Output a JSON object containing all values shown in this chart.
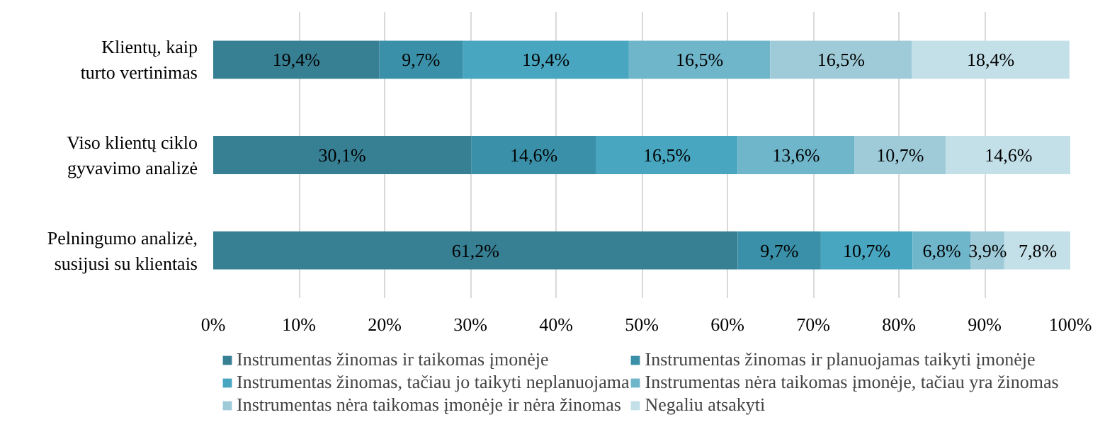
{
  "chart_data": {
    "type": "bar",
    "orientation": "horizontal",
    "stacked": true,
    "categories": [
      "Klientų, kaip turto vertinimas",
      "Viso klientų ciklo gyvavimo analizė",
      "Pelningumo analizė, susijusi su klientais"
    ],
    "series": [
      {
        "name": "Instrumentas žinomas ir taikomas įmonėje",
        "color": "#377f93",
        "values": [
          19.4,
          30.1,
          61.2
        ],
        "value_labels": [
          "19,4%",
          "30,1%",
          "61,2%"
        ]
      },
      {
        "name": "Instrumentas žinomas ir planuojamas taikyti įmonėje",
        "color": "#3a90a8",
        "values": [
          9.7,
          14.6,
          9.7
        ],
        "value_labels": [
          "9,7%",
          "14,6%",
          "9,7%"
        ]
      },
      {
        "name": "Instrumentas žinomas, tačiau jo taikyti neplanuojama",
        "color": "#48a6c0",
        "values": [
          19.4,
          16.5,
          10.7
        ],
        "value_labels": [
          "19,4%",
          "16,5%",
          "10,7%"
        ]
      },
      {
        "name": "Instrumentas nėra taikomas įmonėje, tačiau yra žinomas",
        "color": "#6fb6cb",
        "values": [
          16.5,
          13.6,
          6.8
        ],
        "value_labels": [
          "16,5%",
          "13,6%",
          "6,8%"
        ]
      },
      {
        "name": "Instrumentas nėra taikomas įmonėje ir nėra žinomas",
        "color": "#9fcbd9",
        "values": [
          16.5,
          10.7,
          3.9
        ],
        "value_labels": [
          "16,5%",
          "10,7%",
          "3,9%"
        ]
      },
      {
        "name": "Negaliu atsakyti",
        "color": "#c3dfe8",
        "values": [
          18.4,
          14.6,
          7.8
        ],
        "value_labels": [
          "18,4%",
          "14,6%",
          "7,8%"
        ]
      }
    ],
    "xlim": [
      0,
      100
    ],
    "xticks": [
      {
        "value": 0,
        "label": "0%"
      },
      {
        "value": 10,
        "label": "10%"
      },
      {
        "value": 20,
        "label": "20%"
      },
      {
        "value": 30,
        "label": "30%"
      },
      {
        "value": 40,
        "label": "40%"
      },
      {
        "value": 50,
        "label": "50%"
      },
      {
        "value": 60,
        "label": "60%"
      },
      {
        "value": 70,
        "label": "70%"
      },
      {
        "value": 80,
        "label": "80%"
      },
      {
        "value": 90,
        "label": "90%"
      },
      {
        "value": 100,
        "label": "100%"
      }
    ],
    "grid": "x",
    "legend": "bottom"
  }
}
